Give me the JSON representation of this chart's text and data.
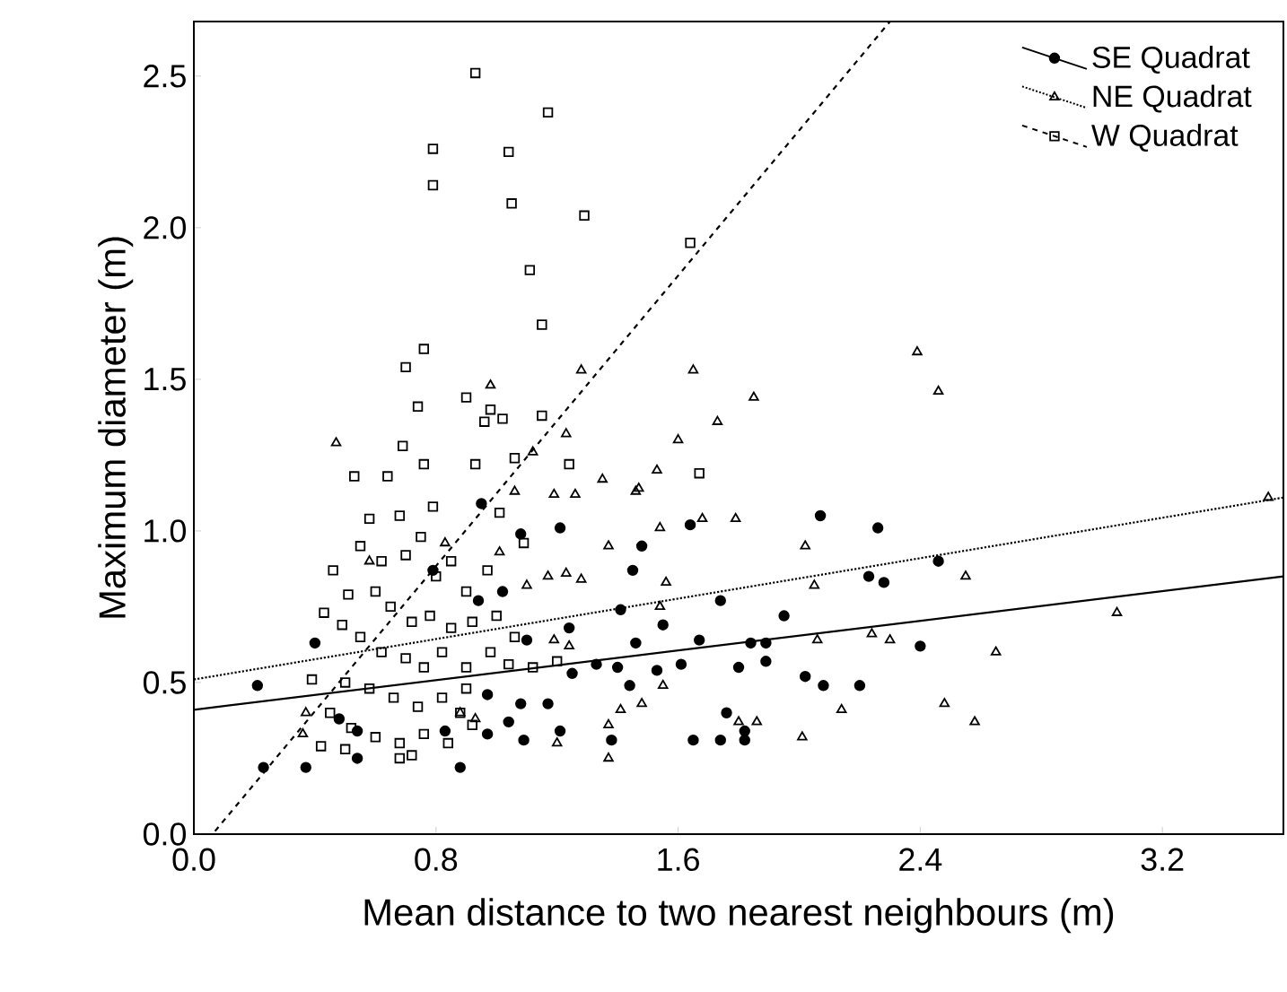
{
  "chart_data": {
    "type": "scatter",
    "xlabel": "Mean distance to two nearest neighbours (m)",
    "ylabel": "Maximum diameter (m)",
    "xlim": [
      0,
      3.6
    ],
    "ylim": [
      0,
      2.68
    ],
    "xticks": [
      {
        "value": 0,
        "label": "0.0"
      },
      {
        "value": 0.8,
        "label": "0.8"
      },
      {
        "value": 1.6,
        "label": "1.6"
      },
      {
        "value": 2.4,
        "label": "2.4"
      },
      {
        "value": 3.2,
        "label": "3.2"
      }
    ],
    "yticks": [
      {
        "value": 0,
        "label": "0.0"
      },
      {
        "value": 0.5,
        "label": "0.5"
      },
      {
        "value": 1,
        "label": "1.0"
      },
      {
        "value": 1.5,
        "label": "1.5"
      },
      {
        "value": 2,
        "label": "2.0"
      },
      {
        "value": 2.5,
        "label": "2.5"
      }
    ],
    "legend": "top right",
    "series": [
      {
        "name": "SE Quadrat",
        "color": "#000000",
        "marker": "circle",
        "line_style": "solid",
        "x": [
          0.4,
          0.21,
          0.23,
          0.37,
          0.54,
          0.88,
          1.21,
          1.48,
          1.64,
          1.74,
          1.45,
          1.41,
          1.55,
          1.46,
          1.67,
          1.8,
          1.4,
          1.53,
          1.61,
          1.44,
          1.25,
          1.33,
          1.65,
          1.74,
          1.82,
          1.38,
          1.21,
          1.09,
          1.04,
          0.97,
          0.83,
          1.24,
          1.1,
          1.02,
          0.94,
          0.79,
          0.95,
          1.08,
          1.17,
          1.08,
          0.97,
          0.54,
          0.48,
          2.07,
          2.26,
          2.23,
          2.28,
          2.46,
          1.95,
          1.84,
          1.89,
          1.89,
          2.02,
          2.08,
          2.2,
          2.4,
          1.76,
          1.82
        ],
        "values": [
          0.63,
          0.49,
          0.22,
          0.22,
          0.25,
          0.22,
          1.01,
          0.95,
          1.02,
          0.77,
          0.87,
          0.74,
          0.69,
          0.63,
          0.64,
          0.55,
          0.55,
          0.54,
          0.56,
          0.49,
          0.53,
          0.56,
          0.31,
          0.31,
          0.31,
          0.31,
          0.34,
          0.31,
          0.37,
          0.33,
          0.34,
          0.68,
          0.64,
          0.8,
          0.77,
          0.87,
          1.09,
          0.99,
          0.43,
          0.43,
          0.46,
          0.34,
          0.38,
          1.05,
          1.01,
          0.85,
          0.83,
          0.9,
          0.72,
          0.63,
          0.63,
          0.57,
          0.52,
          0.49,
          0.49,
          0.62,
          0.4,
          0.34
        ]
      },
      {
        "name": "NE Quadrat",
        "color": "#000000",
        "marker": "triangle",
        "line_style": "dotted",
        "x": [
          0.47,
          0.98,
          1.28,
          1.65,
          1.85,
          1.73,
          1.6,
          1.23,
          1.53,
          1.35,
          1.46,
          1.06,
          1.19,
          1.26,
          1.12,
          1.47,
          1.54,
          1.68,
          1.79,
          1.37,
          1.56,
          1.54,
          1.17,
          1.23,
          1.28,
          1.1,
          1.19,
          1.24,
          1.01,
          0.83,
          0.58,
          1.55,
          1.41,
          1.48,
          1.37,
          1.37,
          1.2,
          0.93,
          0.88,
          0.37,
          0.36,
          1.8,
          1.86,
          2.39,
          2.46,
          3.55,
          2.02,
          2.05,
          2.55,
          3.05,
          2.06,
          2.24,
          2.3,
          2.65,
          2.14,
          2.48,
          2.58,
          2.01
        ],
        "values": [
          1.29,
          1.48,
          1.53,
          1.53,
          1.44,
          1.36,
          1.3,
          1.32,
          1.2,
          1.17,
          1.13,
          1.13,
          1.12,
          1.12,
          1.26,
          1.14,
          1.01,
          1.04,
          1.04,
          0.95,
          0.83,
          0.75,
          0.85,
          0.86,
          0.84,
          0.82,
          0.64,
          0.62,
          0.93,
          0.96,
          0.9,
          0.49,
          0.41,
          0.43,
          0.36,
          0.25,
          0.3,
          0.38,
          0.4,
          0.4,
          0.33,
          0.37,
          0.37,
          1.59,
          1.46,
          1.11,
          0.95,
          0.82,
          0.85,
          0.73,
          0.64,
          0.66,
          0.64,
          0.6,
          0.41,
          0.43,
          0.37,
          0.32
        ]
      },
      {
        "name": "W Quadrat",
        "color": "#000000",
        "marker": "square",
        "line_style": "dashed",
        "x": [
          0.93,
          1.17,
          0.79,
          1.04,
          0.79,
          1.05,
          1.29,
          1.64,
          1.11,
          1.15,
          0.76,
          0.7,
          0.74,
          0.9,
          0.98,
          0.96,
          1.02,
          1.15,
          0.69,
          0.76,
          0.93,
          1.06,
          1.24,
          0.53,
          0.64,
          1.67,
          0.58,
          0.68,
          0.79,
          0.46,
          0.51,
          0.43,
          0.49,
          0.39,
          0.42,
          0.97,
          1.09,
          1.01,
          1.04,
          0.68,
          0.55,
          0.62,
          0.7,
          0.75,
          0.8,
          0.85,
          0.9,
          0.6,
          0.65,
          0.72,
          0.78,
          0.85,
          0.92,
          1.0,
          0.55,
          0.62,
          0.7,
          0.76,
          0.82,
          0.9,
          0.98,
          1.06,
          0.5,
          0.58,
          0.66,
          0.74,
          0.82,
          0.9,
          0.45,
          0.52,
          0.6,
          0.68,
          0.76,
          0.84,
          0.92,
          0.5,
          0.72,
          0.88,
          1.12,
          1.2
        ],
        "values": [
          2.51,
          2.38,
          2.26,
          2.25,
          2.14,
          2.08,
          2.04,
          1.95,
          1.86,
          1.68,
          1.6,
          1.54,
          1.41,
          1.44,
          1.4,
          1.36,
          1.37,
          1.38,
          1.28,
          1.22,
          1.22,
          1.24,
          1.22,
          1.18,
          1.18,
          1.19,
          1.04,
          1.05,
          1.08,
          0.87,
          0.79,
          0.73,
          0.69,
          0.51,
          0.29,
          0.87,
          0.96,
          1.06,
          0.56,
          0.25,
          0.95,
          0.9,
          0.92,
          0.98,
          0.85,
          0.9,
          0.8,
          0.8,
          0.75,
          0.7,
          0.72,
          0.68,
          0.7,
          0.72,
          0.65,
          0.6,
          0.58,
          0.55,
          0.6,
          0.55,
          0.6,
          0.65,
          0.5,
          0.48,
          0.45,
          0.42,
          0.45,
          0.48,
          0.4,
          0.35,
          0.32,
          0.3,
          0.33,
          0.3,
          0.36,
          0.28,
          0.26,
          0.4,
          0.55,
          0.57
        ]
      },
      {
        "type": "line",
        "color": "#000000",
        "line_style": "solid",
        "x": [
          0,
          3.6
        ],
        "values": [
          0.41,
          0.85
        ]
      },
      {
        "type": "line",
        "color": "#000000",
        "line_style": "dotted",
        "x": [
          0,
          3.6
        ],
        "values": [
          0.51,
          1.11
        ]
      },
      {
        "type": "line",
        "color": "#000000",
        "line_style": "dashed",
        "x": [
          0.07,
          2.3
        ],
        "values": [
          0.01,
          2.68
        ]
      }
    ]
  }
}
